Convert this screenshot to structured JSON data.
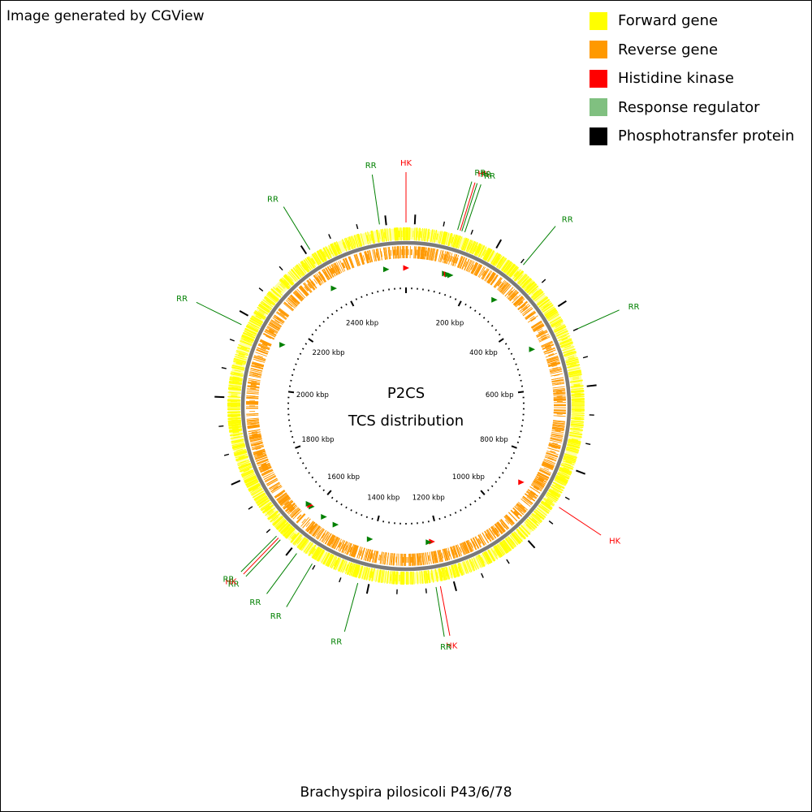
{
  "credit": "Image generated by CGView",
  "footer": "Brachyspira pilosicoli P43/6/78",
  "center": {
    "line1": "P2CS",
    "line2": "TCS distribution"
  },
  "legend": [
    {
      "label": "Forward gene",
      "color": "#ffff00"
    },
    {
      "label": "Reverse gene",
      "color": "#ff9900"
    },
    {
      "label": "Histidine kinase",
      "color": "#ff0000"
    },
    {
      "label": "Response regulator",
      "color": "#80c080"
    },
    {
      "label": "Phosphotransfer protein",
      "color": "#000000"
    }
  ],
  "colors": {
    "forward": "#ffff00",
    "reverse": "#ff9900",
    "hk": "#ff0000",
    "rr": "#008000",
    "backbone": "#7a7a7a"
  },
  "genome": {
    "length_kbp": 2600,
    "ticks_kbp": [
      "200 kbp",
      "400 kbp",
      "600 kbp",
      "800 kbp",
      "1000 kbp",
      "1200 kbp",
      "1400 kbp",
      "1600 kbp",
      "1800 kbp",
      "2000 kbp",
      "2200 kbp",
      "2400 kbp"
    ]
  },
  "features": [
    {
      "label": "HK",
      "type": "HK",
      "kbp": 0
    },
    {
      "label": "RR",
      "type": "RR",
      "kbp": 2540
    },
    {
      "label": "RR",
      "type": "RR",
      "kbp": 118
    },
    {
      "label": "HK",
      "type": "HK",
      "kbp": 124
    },
    {
      "label": "RR",
      "type": "RR",
      "kbp": 128
    },
    {
      "label": "RR",
      "type": "RR",
      "kbp": 135
    },
    {
      "label": "RR",
      "type": "RR",
      "kbp": 287
    },
    {
      "label": "RR",
      "type": "RR",
      "kbp": 475
    },
    {
      "label": "HK",
      "type": "HK",
      "kbp": 892
    },
    {
      "label": "HK",
      "type": "HK",
      "kbp": 1222
    },
    {
      "label": "RR",
      "type": "RR",
      "kbp": 1232
    },
    {
      "label": "RR",
      "type": "RR",
      "kbp": 1410
    },
    {
      "label": "RR",
      "type": "RR",
      "kbp": 1522
    },
    {
      "label": "RR",
      "type": "RR",
      "kbp": 1564
    },
    {
      "label": "RR",
      "type": "RR",
      "kbp": 1612
    },
    {
      "label": "HK",
      "type": "HK",
      "kbp": 1618
    },
    {
      "label": "RR",
      "type": "RR",
      "kbp": 1624
    },
    {
      "label": "RR",
      "type": "RR",
      "kbp": 2140
    },
    {
      "label": "RR",
      "type": "RR",
      "kbp": 2372
    }
  ]
}
